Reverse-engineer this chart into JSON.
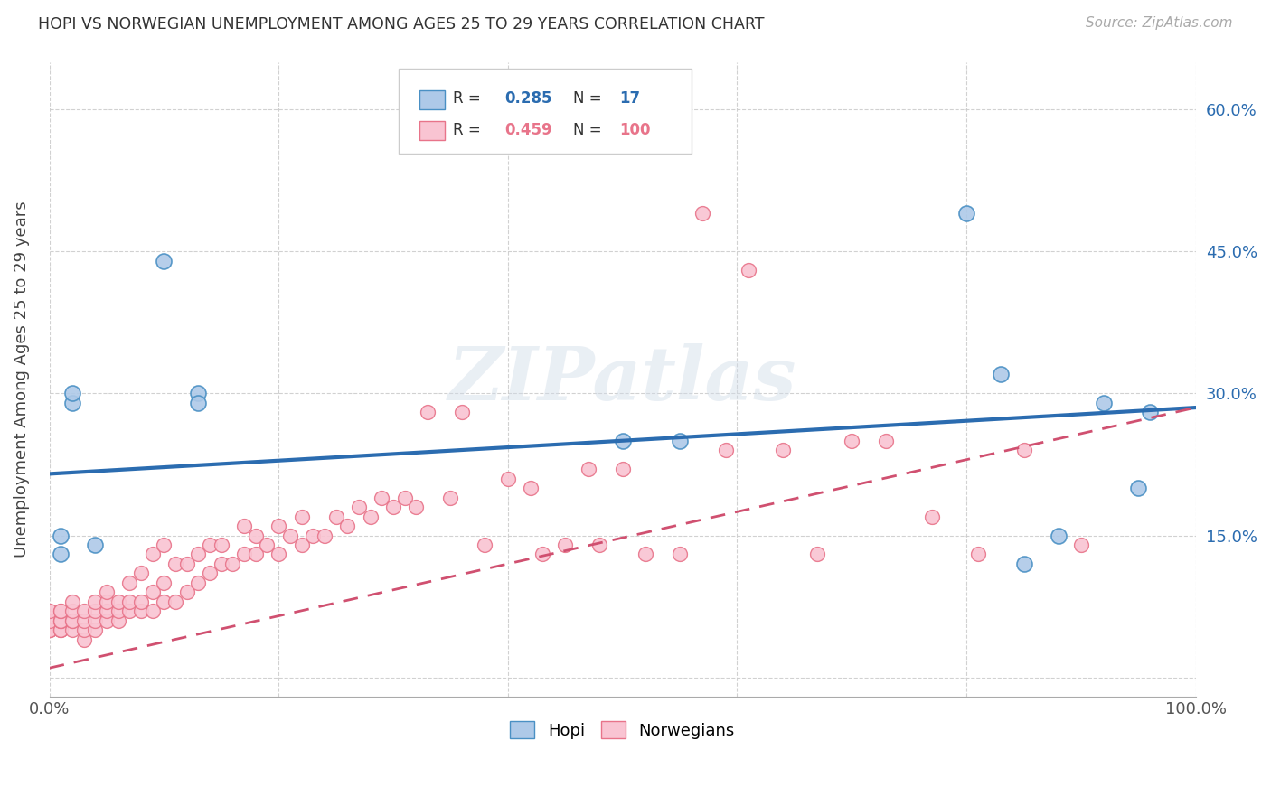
{
  "title": "HOPI VS NORWEGIAN UNEMPLOYMENT AMONG AGES 25 TO 29 YEARS CORRELATION CHART",
  "source": "Source: ZipAtlas.com",
  "ylabel": "Unemployment Among Ages 25 to 29 years",
  "xlim": [
    0,
    1
  ],
  "ylim": [
    -0.02,
    0.65
  ],
  "x_tick_positions": [
    0.0,
    0.2,
    0.4,
    0.6,
    0.8,
    1.0
  ],
  "x_tick_labels": [
    "0.0%",
    "",
    "",
    "",
    "",
    "100.0%"
  ],
  "y_tick_positions": [
    0.0,
    0.15,
    0.3,
    0.45,
    0.6
  ],
  "y_tick_labels_left": [
    "",
    "",
    "",
    "",
    ""
  ],
  "y_tick_labels_right": [
    "",
    "15.0%",
    "30.0%",
    "45.0%",
    "60.0%"
  ],
  "hopi_R": 0.285,
  "hopi_N": 17,
  "norw_R": 0.459,
  "norw_N": 100,
  "hopi_color": "#aec9e8",
  "norw_color": "#f9c4d2",
  "hopi_edge_color": "#4a90c4",
  "norw_edge_color": "#e8748a",
  "hopi_trend_color": "#2b6cb0",
  "norw_trend_color": "#d05070",
  "background_color": "#ffffff",
  "grid_color": "#cccccc",
  "watermark_text": "ZIPatlas",
  "legend_label_hopi": "Hopi",
  "legend_label_norw": "Norwegians",
  "hopi_x": [
    0.01,
    0.01,
    0.02,
    0.02,
    0.04,
    0.1,
    0.13,
    0.13,
    0.5,
    0.55,
    0.8,
    0.83,
    0.85,
    0.88,
    0.92,
    0.95,
    0.96
  ],
  "hopi_y": [
    0.13,
    0.15,
    0.29,
    0.3,
    0.14,
    0.44,
    0.3,
    0.29,
    0.25,
    0.25,
    0.49,
    0.32,
    0.12,
    0.15,
    0.29,
    0.2,
    0.28
  ],
  "norw_x": [
    0.0,
    0.0,
    0.0,
    0.0,
    0.0,
    0.01,
    0.01,
    0.01,
    0.01,
    0.01,
    0.01,
    0.01,
    0.01,
    0.02,
    0.02,
    0.02,
    0.02,
    0.02,
    0.03,
    0.03,
    0.03,
    0.03,
    0.04,
    0.04,
    0.04,
    0.04,
    0.05,
    0.05,
    0.05,
    0.05,
    0.06,
    0.06,
    0.06,
    0.07,
    0.07,
    0.07,
    0.08,
    0.08,
    0.08,
    0.09,
    0.09,
    0.09,
    0.1,
    0.1,
    0.1,
    0.11,
    0.11,
    0.12,
    0.12,
    0.13,
    0.13,
    0.14,
    0.14,
    0.15,
    0.15,
    0.16,
    0.17,
    0.17,
    0.18,
    0.18,
    0.19,
    0.2,
    0.2,
    0.21,
    0.22,
    0.22,
    0.23,
    0.24,
    0.25,
    0.26,
    0.27,
    0.28,
    0.29,
    0.3,
    0.31,
    0.32,
    0.33,
    0.35,
    0.36,
    0.38,
    0.4,
    0.42,
    0.43,
    0.45,
    0.47,
    0.48,
    0.5,
    0.52,
    0.55,
    0.57,
    0.59,
    0.61,
    0.64,
    0.67,
    0.7,
    0.73,
    0.77,
    0.81,
    0.85,
    0.9
  ],
  "norw_y": [
    0.05,
    0.05,
    0.05,
    0.06,
    0.07,
    0.05,
    0.05,
    0.05,
    0.06,
    0.06,
    0.06,
    0.07,
    0.07,
    0.05,
    0.06,
    0.06,
    0.07,
    0.08,
    0.04,
    0.05,
    0.06,
    0.07,
    0.05,
    0.06,
    0.07,
    0.08,
    0.06,
    0.07,
    0.08,
    0.09,
    0.06,
    0.07,
    0.08,
    0.07,
    0.08,
    0.1,
    0.07,
    0.08,
    0.11,
    0.07,
    0.09,
    0.13,
    0.08,
    0.1,
    0.14,
    0.08,
    0.12,
    0.09,
    0.12,
    0.1,
    0.13,
    0.11,
    0.14,
    0.12,
    0.14,
    0.12,
    0.13,
    0.16,
    0.13,
    0.15,
    0.14,
    0.13,
    0.16,
    0.15,
    0.14,
    0.17,
    0.15,
    0.15,
    0.17,
    0.16,
    0.18,
    0.17,
    0.19,
    0.18,
    0.19,
    0.18,
    0.28,
    0.19,
    0.28,
    0.14,
    0.21,
    0.2,
    0.13,
    0.14,
    0.22,
    0.14,
    0.22,
    0.13,
    0.13,
    0.49,
    0.24,
    0.43,
    0.24,
    0.13,
    0.25,
    0.25,
    0.17,
    0.13,
    0.24,
    0.14
  ],
  "hopi_trend_x": [
    0.0,
    1.0
  ],
  "hopi_trend_y": [
    0.215,
    0.285
  ],
  "norw_trend_x": [
    0.0,
    1.0
  ],
  "norw_trend_y": [
    0.01,
    0.285
  ]
}
